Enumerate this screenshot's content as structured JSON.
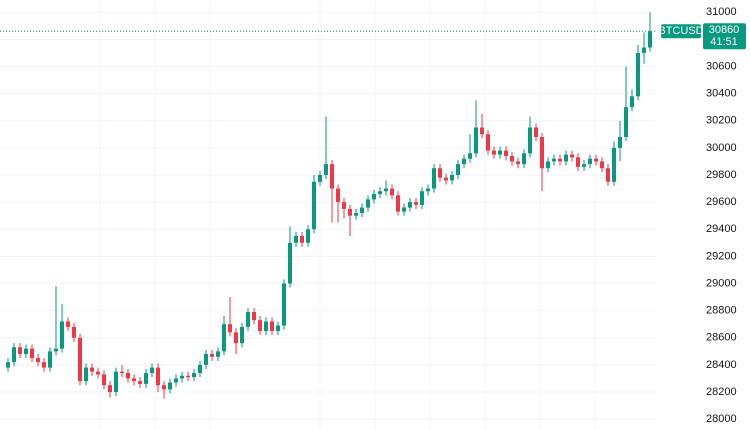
{
  "chart_data": {
    "type": "candlestick",
    "symbol": "BTCUSD",
    "countdown": "41:51",
    "up_color": "#089981",
    "down_color": "#f23645",
    "grid": true,
    "ylim": [
      27920,
      31090
    ],
    "yticks": [
      28000,
      28200,
      28400,
      28600,
      28800,
      29000,
      29200,
      29400,
      29600,
      29800,
      30000,
      30200,
      30400,
      30600,
      30800,
      31000
    ],
    "open": [
      28380,
      28420,
      28530,
      28480,
      28520,
      28450,
      28420,
      28380,
      28500,
      28520,
      28720,
      28680,
      28600,
      28280,
      28380,
      28350,
      28330,
      28250,
      28200,
      28350,
      28340,
      28300,
      28280,
      28260,
      28340,
      28380,
      28250,
      28220,
      28270,
      28300,
      28320,
      28310,
      28340,
      28400,
      28480,
      28460,
      28500,
      28700,
      28640,
      28560,
      28680,
      28790,
      28730,
      28650,
      28720,
      28650,
      28690,
      29000,
      29300,
      29350,
      29300,
      29400,
      29750,
      29800,
      29880,
      29700,
      29600,
      29550,
      29500,
      29520,
      29560,
      29620,
      29660,
      29680,
      29700,
      29650,
      29530,
      29560,
      29600,
      29580,
      29680,
      29700,
      29850,
      29780,
      29760,
      29800,
      29880,
      29920,
      29960,
      30150,
      30100,
      29980,
      29950,
      29980,
      29940,
      29900,
      29880,
      29960,
      30150,
      30080,
      29850,
      29900,
      29920,
      29900,
      29950,
      29930,
      29860,
      29880,
      29920,
      29900,
      29850,
      29750,
      30000,
      30080,
      30300,
      30380,
      30700,
      30740
    ],
    "high": [
      28450,
      28560,
      28560,
      28550,
      28550,
      28480,
      28450,
      28530,
      28980,
      28850,
      28750,
      28710,
      28630,
      28410,
      28410,
      28380,
      28360,
      28280,
      28380,
      28400,
      28370,
      28330,
      28310,
      28370,
      28410,
      28410,
      28280,
      28300,
      28330,
      28350,
      28350,
      28370,
      28430,
      28510,
      28510,
      28530,
      28760,
      28900,
      28670,
      28710,
      28820,
      28820,
      28760,
      28750,
      28750,
      28720,
      29030,
      29420,
      29380,
      29380,
      29430,
      29800,
      29830,
      30230,
      29910,
      29730,
      29630,
      29580,
      29550,
      29590,
      29650,
      29690,
      29710,
      29760,
      29730,
      29680,
      29590,
      29630,
      29630,
      29710,
      29730,
      29880,
      29880,
      29810,
      29830,
      29910,
      29950,
      30100,
      30350,
      30250,
      30130,
      30010,
      30010,
      30010,
      29970,
      29930,
      29990,
      30230,
      30180,
      30110,
      29930,
      29950,
      29950,
      29980,
      29980,
      29960,
      29910,
      29950,
      29950,
      29930,
      29880,
      30050,
      30200,
      30600,
      30430,
      30760,
      30850,
      31000
    ],
    "low": [
      28350,
      28390,
      28450,
      28450,
      28420,
      28390,
      28350,
      28350,
      28470,
      28490,
      28650,
      28570,
      28250,
      28250,
      28320,
      28300,
      28220,
      28160,
      28170,
      28310,
      28270,
      28250,
      28230,
      28230,
      28310,
      28200,
      28150,
      28190,
      28240,
      28270,
      28280,
      28280,
      28310,
      28370,
      28430,
      28430,
      28470,
      28610,
      28480,
      28530,
      28650,
      28700,
      28620,
      28620,
      28620,
      28620,
      28660,
      28970,
      29270,
      29270,
      29270,
      29370,
      29720,
      29770,
      29450,
      29450,
      29480,
      29350,
      29470,
      29490,
      29530,
      29590,
      29630,
      29650,
      29620,
      29500,
      29500,
      29530,
      29550,
      29550,
      29650,
      29670,
      29750,
      29730,
      29730,
      29770,
      29850,
      29890,
      29930,
      30070,
      29950,
      29920,
      29920,
      29910,
      29870,
      29850,
      29850,
      29930,
      30050,
      29680,
      29820,
      29870,
      29870,
      29870,
      29900,
      29830,
      29830,
      29850,
      29870,
      29820,
      29720,
      29720,
      29900,
      30050,
      30270,
      30350,
      30620,
      30710
    ],
    "close": [
      28420,
      28530,
      28480,
      28520,
      28450,
      28420,
      28380,
      28500,
      28520,
      28720,
      28680,
      28600,
      28280,
      28380,
      28350,
      28330,
      28250,
      28200,
      28350,
      28340,
      28300,
      28280,
      28260,
      28340,
      28380,
      28250,
      28220,
      28270,
      28300,
      28320,
      28310,
      28340,
      28400,
      28480,
      28460,
      28500,
      28700,
      28640,
      28560,
      28680,
      28790,
      28730,
      28650,
      28720,
      28650,
      28690,
      29000,
      29300,
      29350,
      29300,
      29400,
      29750,
      29800,
      29880,
      29700,
      29600,
      29550,
      29500,
      29520,
      29560,
      29620,
      29660,
      29680,
      29700,
      29650,
      29530,
      29560,
      29600,
      29580,
      29680,
      29700,
      29850,
      29780,
      29760,
      29800,
      29880,
      29920,
      29960,
      30150,
      30100,
      29980,
      29950,
      29980,
      29940,
      29900,
      29880,
      29960,
      30150,
      30080,
      29850,
      29900,
      29920,
      29900,
      29950,
      29930,
      29860,
      29880,
      29920,
      29900,
      29850,
      29750,
      30000,
      30080,
      30300,
      30380,
      30700,
      30740,
      30860
    ]
  }
}
